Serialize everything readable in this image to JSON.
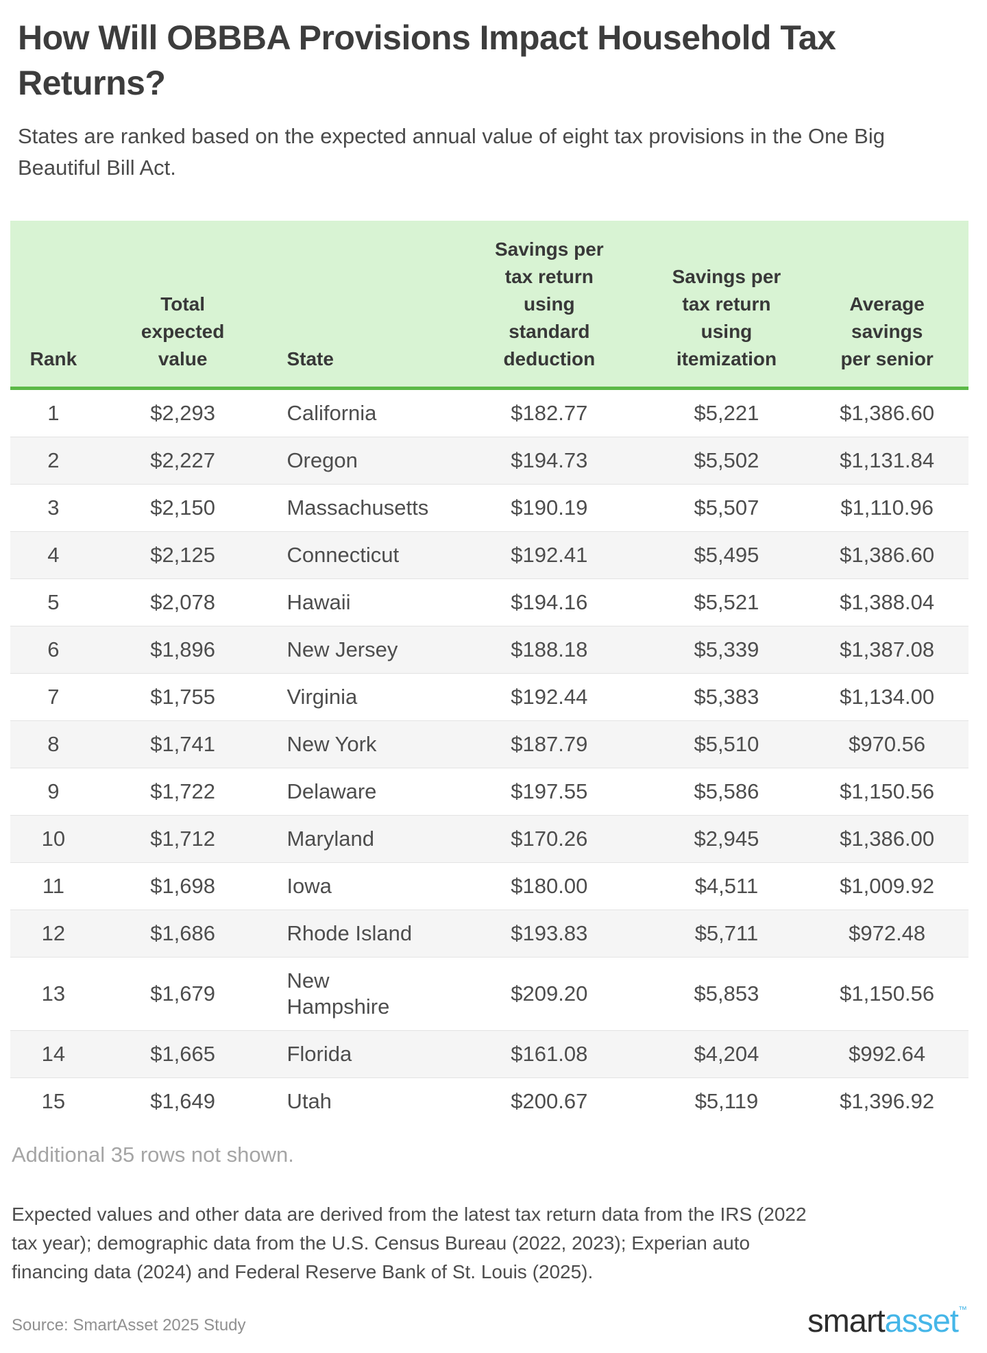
{
  "header": {
    "title": "How Will OBBBA Provisions Impact Household Tax Returns?",
    "subtitle": "States are ranked based on the expected annual value of eight tax provisions in the One Big Beautiful Bill Act."
  },
  "table": {
    "columns": [
      {
        "id": "rank",
        "label": "Rank",
        "align": "center"
      },
      {
        "id": "total-expected-value",
        "label": "Total\nexpected\nvalue",
        "align": "center"
      },
      {
        "id": "state",
        "label": "State",
        "align": "left"
      },
      {
        "id": "savings-standard-deduction",
        "label": "Savings per\ntax return\nusing\nstandard\ndeduction",
        "align": "center"
      },
      {
        "id": "savings-itemization",
        "label": "Savings per\ntax return\nusing\nitemization",
        "align": "center"
      },
      {
        "id": "average-savings-per-senior",
        "label": "Average\nsavings\nper senior",
        "align": "center"
      }
    ],
    "rows": [
      [
        "1",
        "$2,293",
        "California",
        "$182.77",
        "$5,221",
        "$1,386.60"
      ],
      [
        "2",
        "$2,227",
        "Oregon",
        "$194.73",
        "$5,502",
        "$1,131.84"
      ],
      [
        "3",
        "$2,150",
        "Massachusetts",
        "$190.19",
        "$5,507",
        "$1,110.96"
      ],
      [
        "4",
        "$2,125",
        "Connecticut",
        "$192.41",
        "$5,495",
        "$1,386.60"
      ],
      [
        "5",
        "$2,078",
        "Hawaii",
        "$194.16",
        "$5,521",
        "$1,388.04"
      ],
      [
        "6",
        "$1,896",
        "New Jersey",
        "$188.18",
        "$5,339",
        "$1,387.08"
      ],
      [
        "7",
        "$1,755",
        "Virginia",
        "$192.44",
        "$5,383",
        "$1,134.00"
      ],
      [
        "8",
        "$1,741",
        "New York",
        "$187.79",
        "$5,510",
        "$970.56"
      ],
      [
        "9",
        "$1,722",
        "Delaware",
        "$197.55",
        "$5,586",
        "$1,150.56"
      ],
      [
        "10",
        "$1,712",
        "Maryland",
        "$170.26",
        "$2,945",
        "$1,386.00"
      ],
      [
        "11",
        "$1,698",
        "Iowa",
        "$180.00",
        "$4,511",
        "$1,009.92"
      ],
      [
        "12",
        "$1,686",
        "Rhode Island",
        "$193.83",
        "$5,711",
        "$972.48"
      ],
      [
        "13",
        "$1,679",
        "New\nHampshire",
        "$209.20",
        "$5,853",
        "$1,150.56"
      ],
      [
        "14",
        "$1,665",
        "Florida",
        "$161.08",
        "$4,204",
        "$992.64"
      ],
      [
        "15",
        "$1,649",
        "Utah",
        "$200.67",
        "$5,119",
        "$1,396.92"
      ]
    ],
    "note": "Additional 35 rows not shown."
  },
  "footer": {
    "methodology": "Expected values and other data are derived from the latest tax return data from the IRS (2022 tax year); demographic data from the U.S. Census Bureau (2022, 2023); Experian auto financing data (2024) and Federal Reserve Bank of St. Louis (2025).",
    "source": "Source: SmartAsset 2025 Study",
    "logo": {
      "part1": "smart",
      "part2": "asset",
      "tm": "™"
    }
  },
  "colors": {
    "header_bg": "#d8f3d3",
    "header_border_green": "#5cb947",
    "row_stripe": "#f5f5f5",
    "logo_blue": "#45b6e8"
  },
  "chart_data": {
    "type": "table",
    "title": "How Will OBBBA Provisions Impact Household Tax Returns?",
    "subtitle": "States are ranked based on the expected annual value of eight tax provisions in the One Big Beautiful Bill Act.",
    "columns": [
      "Rank",
      "Total expected value",
      "State",
      "Savings per tax return using standard deduction",
      "Savings per tax return using itemization",
      "Average savings per senior"
    ],
    "rows": [
      [
        1,
        2293,
        "California",
        182.77,
        5221,
        1386.6
      ],
      [
        2,
        2227,
        "Oregon",
        194.73,
        5502,
        1131.84
      ],
      [
        3,
        2150,
        "Massachusetts",
        190.19,
        5507,
        1110.96
      ],
      [
        4,
        2125,
        "Connecticut",
        192.41,
        5495,
        1386.6
      ],
      [
        5,
        2078,
        "Hawaii",
        194.16,
        5521,
        1388.04
      ],
      [
        6,
        1896,
        "New Jersey",
        188.18,
        5339,
        1387.08
      ],
      [
        7,
        1755,
        "Virginia",
        192.44,
        5383,
        1134.0
      ],
      [
        8,
        1741,
        "New York",
        187.79,
        5510,
        970.56
      ],
      [
        9,
        1722,
        "Delaware",
        197.55,
        5586,
        1150.56
      ],
      [
        10,
        1712,
        "Maryland",
        170.26,
        2945,
        1386.0
      ],
      [
        11,
        1698,
        "Iowa",
        180.0,
        4511,
        1009.92
      ],
      [
        12,
        1686,
        "Rhode Island",
        193.83,
        5711,
        972.48
      ],
      [
        13,
        1679,
        "New Hampshire",
        209.2,
        5853,
        1150.56
      ],
      [
        14,
        1665,
        "Florida",
        161.08,
        4204,
        992.64
      ],
      [
        15,
        1649,
        "Utah",
        200.67,
        5119,
        1396.92
      ]
    ],
    "note": "Additional 35 rows not shown.",
    "hidden_rows": 35
  }
}
